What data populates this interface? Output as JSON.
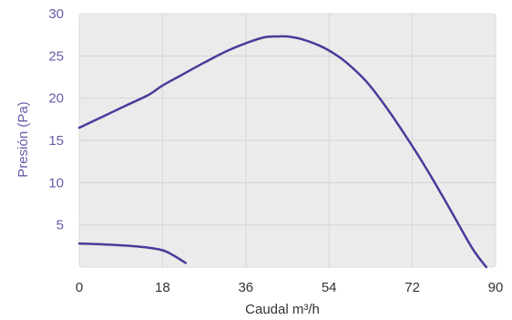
{
  "chart_data": {
    "type": "line",
    "title": "",
    "xlabel": "Caudal m³/h",
    "ylabel": "Presión (Pa)",
    "xlim": [
      0,
      90
    ],
    "ylim": [
      0,
      30
    ],
    "x_ticks": [
      "0",
      "18",
      "36",
      "54",
      "72",
      "90"
    ],
    "x_tick_values": [
      0,
      18,
      36,
      54,
      72,
      90
    ],
    "y_ticks": [
      "5",
      "10",
      "15",
      "20",
      "25",
      "30"
    ],
    "y_tick_values": [
      5,
      10,
      15,
      20,
      25,
      30
    ],
    "grid": true,
    "colors": {
      "plot_bg": "#ebebeb",
      "grid": "#d6d6d6",
      "line": "#4b3b9a"
    },
    "series": [
      {
        "x": [
          0,
          5,
          10,
          15,
          18,
          22,
          27,
          32,
          36,
          40,
          43,
          45,
          48,
          52,
          55,
          58,
          62,
          66,
          70,
          75,
          80,
          85,
          88
        ],
        "y": [
          16.5,
          17.8,
          19.1,
          20.4,
          21.5,
          22.7,
          24.2,
          25.6,
          26.5,
          27.2,
          27.3,
          27.3,
          27.0,
          26.2,
          25.3,
          24.1,
          22.0,
          19.2,
          16.0,
          11.7,
          7.0,
          2.2,
          0
        ]
      },
      {
        "x": [
          0,
          5,
          10,
          15,
          18,
          20,
          23
        ],
        "y": [
          2.8,
          2.7,
          2.55,
          2.3,
          2.0,
          1.5,
          0.5
        ]
      }
    ]
  }
}
